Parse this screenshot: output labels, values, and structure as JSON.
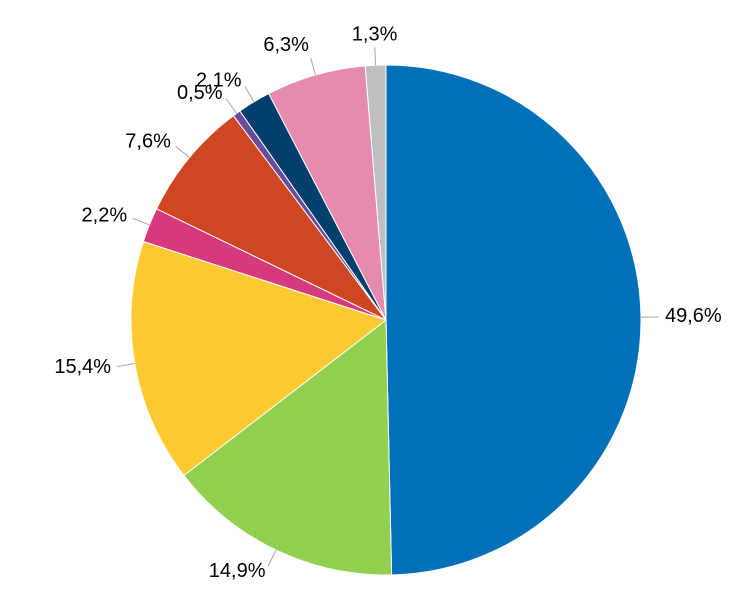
{
  "chart_data": {
    "type": "pie",
    "values": [
      49.6,
      14.9,
      15.4,
      2.2,
      7.6,
      0.5,
      2.1,
      6.3,
      1.3
    ],
    "value_labels": [
      "49,6%",
      "14,9%",
      "15,4%",
      "2,2%",
      "7,6%",
      "0,5%",
      "2,1%",
      "6,3%",
      "1,3%"
    ],
    "colors": [
      "#0070b8",
      "#92d050",
      "#ffc932",
      "#d63a7d",
      "#d04623",
      "#6a4c9c",
      "#003f6e",
      "#e68bb0",
      "#bfbfbf"
    ]
  }
}
